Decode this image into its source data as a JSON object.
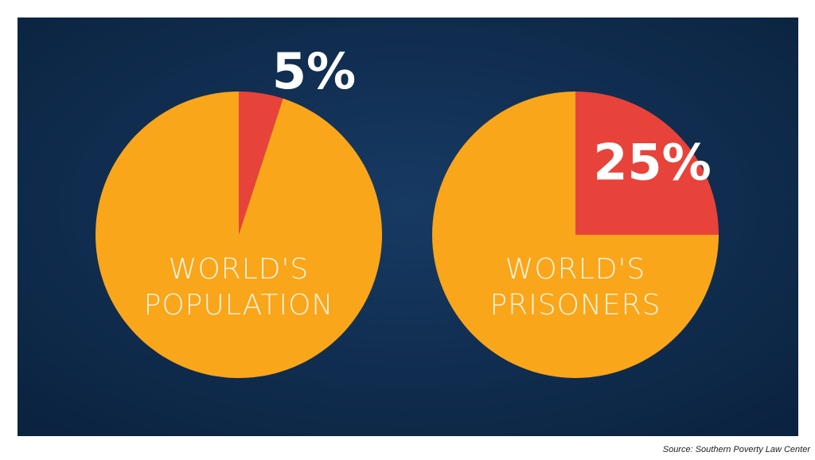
{
  "chart_data": [
    {
      "type": "pie",
      "label": [
        "WORLD'S",
        "POPULATION"
      ],
      "categories": [
        null,
        null
      ],
      "values": [
        5,
        95
      ],
      "value_labels": [
        "5%",
        null
      ],
      "colors": [
        "#e8433a",
        "#f9a61a"
      ]
    },
    {
      "type": "pie",
      "label": [
        "WORLD'S",
        "PRISONERS"
      ],
      "categories": [
        null,
        null
      ],
      "values": [
        25,
        75
      ],
      "value_labels": [
        "25%",
        null
      ],
      "colors": [
        "#e8433a",
        "#f9a61a"
      ]
    }
  ],
  "source": "Source: Southern Poverty Law Center"
}
